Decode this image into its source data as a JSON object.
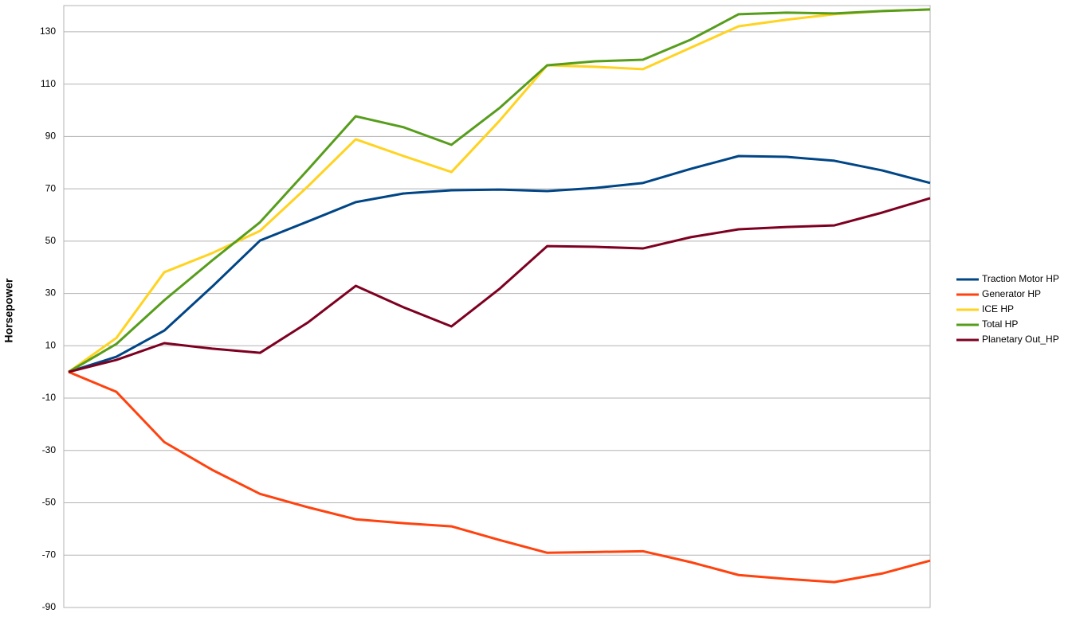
{
  "chart_data": {
    "type": "line",
    "y_label": "Horsepower",
    "categories": [
      null,
      null,
      null,
      null,
      null,
      null,
      null,
      null,
      null,
      null,
      null,
      null,
      null,
      null,
      null,
      null,
      null,
      null,
      null
    ],
    "ylim": [
      -90,
      140
    ],
    "yticks": [
      -90,
      -70,
      -50,
      -30,
      -10,
      10,
      30,
      50,
      70,
      90,
      110,
      130
    ],
    "grid": true,
    "legend": "right",
    "series": [
      {
        "name": "Traction Motor HP",
        "color": "#004586",
        "values": [
          0,
          5.8,
          15.8,
          32.6,
          50.2,
          57.5,
          64.9,
          68.2,
          69.4,
          69.7,
          69.1,
          70.3,
          72.2,
          77.6,
          82.5,
          82.2,
          80.7,
          77,
          72.2
        ]
      },
      {
        "name": "Generator HP",
        "color": "#ff420e",
        "values": [
          0,
          -7.6,
          -26.8,
          -37.4,
          -46.6,
          -51.7,
          -56.3,
          -57.8,
          -59,
          -64.2,
          -69.1,
          -68.8,
          -68.5,
          -72.7,
          -77.6,
          -79.1,
          -80.3,
          -77,
          -72.1
        ]
      },
      {
        "name": "ICE HP",
        "color": "#ffd320",
        "values": [
          0,
          13,
          38.1,
          45.4,
          53.9,
          70.9,
          88.9,
          82.5,
          76.4,
          95.9,
          117.2,
          116.6,
          115.7,
          123.9,
          132.1,
          134.6,
          136.7,
          137.9,
          138.5
        ]
      },
      {
        "name": "Total HP",
        "color": "#579d1c",
        "values": [
          0,
          10.7,
          27.4,
          42.6,
          57.2,
          77.3,
          97.7,
          93.5,
          86.8,
          100.8,
          117.2,
          118.7,
          119.3,
          127,
          136.7,
          137.3,
          137,
          137.9,
          138.5
        ]
      },
      {
        "name": "Planetary Out_HP",
        "color": "#7e0021",
        "values": [
          0,
          4.6,
          11,
          8.9,
          7.3,
          18.9,
          32.9,
          24.7,
          17.4,
          31.7,
          48.1,
          47.8,
          47.2,
          51.5,
          54.5,
          55.4,
          56,
          60.9,
          66.4
        ]
      }
    ]
  }
}
